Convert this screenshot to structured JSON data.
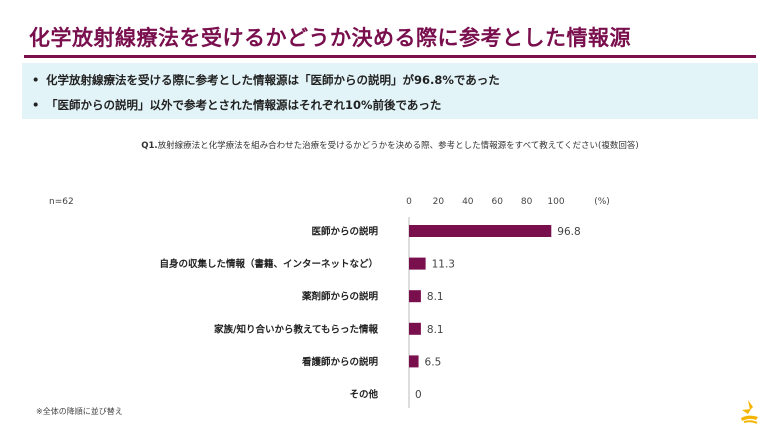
{
  "page": {
    "title": "化学放射線療法を受けるかどうか決める際に参考とした情報源",
    "accent_color": "#7a0f4e",
    "summary_bg": "#e2f4f8"
  },
  "summary": {
    "bullet": "•",
    "items": [
      "化学放射線療法を受ける際に参考とした情報源は「医師からの説明」が96.8%であった",
      "「医師からの説明」以外で参考とされた情報源はそれぞれ10%前後であった"
    ]
  },
  "question": {
    "number": "Q1.",
    "text": "放射線療法と化学療法を組み合わせた治療を受けるかどうかを決める際、参考とした情報源をすべて教えてください(複数回答)"
  },
  "sample": "n=62",
  "footnote": "※全体の降順に並び替え",
  "logo_icon": "company-logo-icon",
  "chart_data": {
    "type": "bar",
    "orientation": "horizontal",
    "categories": [
      "医師からの説明",
      "自身の収集した情報（書籍、インターネットなど）",
      "薬剤師からの説明",
      "家族/知り合いから教えてもらった情報",
      "看護師からの説明",
      "その他"
    ],
    "values": [
      96.8,
      11.3,
      8.1,
      8.1,
      6.5,
      0
    ],
    "value_labels": [
      "96.8",
      "11.3",
      "8.1",
      "8.1",
      "6.5",
      "0"
    ],
    "unit": "(%)",
    "xlim": [
      0,
      100
    ],
    "ticks": [
      "0",
      "20",
      "40",
      "60",
      "80",
      "100"
    ],
    "tick_values": [
      0,
      20,
      40,
      60,
      80,
      100
    ],
    "bar_color": "#7a0f4e",
    "grid": false,
    "legend": "none"
  }
}
